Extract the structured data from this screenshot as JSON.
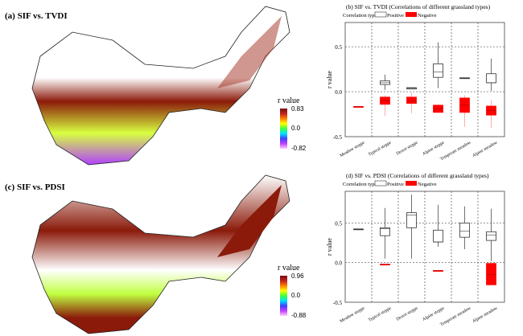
{
  "maps": [
    {
      "title": "(a) SIF vs. TVDI",
      "legend_title": "r value",
      "max": "0.83",
      "mid": "0.0",
      "min": "-0.82"
    },
    {
      "title": "(c) SIF vs. PDSI",
      "legend_title": "r value",
      "max": "0.96",
      "mid": "0.0",
      "min": "-0.88"
    }
  ],
  "chart_data": [
    {
      "type": "box",
      "title": "(b) SIF vs. TVDI (Correlations of different grassland types)",
      "legend_label": "Correlation type",
      "legend": [
        "Positive",
        "Negative"
      ],
      "ylabel": "r value",
      "ylim": [
        -0.5,
        0.77
      ],
      "yticks": [
        "-0.5",
        "0.0",
        "0.5"
      ],
      "ytick_values": [
        -0.5,
        0,
        0.5
      ],
      "categories": [
        "Meadow steppe",
        "Typical steppe",
        "Desert steppe",
        "Alpine steppe",
        "Temperate meadow",
        "Alpine meadow"
      ],
      "positive": [
        null,
        {
          "min": 0.02,
          "q1": 0.08,
          "med": 0.1,
          "q3": 0.12,
          "max": 0.19
        },
        {
          "min": 0.03,
          "q1": 0.03,
          "med": 0.04,
          "q3": 0.045,
          "max": 0.045
        },
        {
          "min": 0.04,
          "q1": 0.16,
          "med": 0.22,
          "q3": 0.31,
          "max": 0.55
        },
        {
          "min": 0.15,
          "q1": 0.15,
          "med": 0.15,
          "q3": 0.155,
          "max": 0.155
        },
        {
          "min": 0.01,
          "q1": 0.1,
          "med": 0.1,
          "q3": 0.2,
          "max": 0.37
        }
      ],
      "negative": [
        {
          "min": -0.165,
          "q1": -0.165,
          "med": -0.165,
          "q3": -0.165,
          "max": -0.165
        },
        {
          "min": -0.27,
          "q1": -0.14,
          "med": -0.1,
          "q3": -0.06,
          "max": -0.04
        },
        {
          "min": -0.24,
          "q1": -0.13,
          "med": -0.1,
          "q3": -0.06,
          "max": -0.01
        },
        {
          "min": -0.23,
          "q1": -0.23,
          "med": -0.19,
          "q3": -0.15,
          "max": -0.14
        },
        {
          "min": -0.39,
          "q1": -0.23,
          "med": -0.15,
          "q3": -0.07,
          "max": -0.04
        },
        {
          "min": -0.4,
          "q1": -0.26,
          "med": -0.21,
          "q3": -0.16,
          "max": -0.09
        }
      ]
    },
    {
      "type": "box",
      "title": "(d) SIF vs. PDSI (Correlations of different grassland types)",
      "legend_label": "Correlation type",
      "legend": [
        "Positive",
        "Negative"
      ],
      "ylabel": "r value",
      "ylim": [
        -0.5,
        0.9
      ],
      "yticks": [
        "-0.5",
        "0.0",
        "0.5"
      ],
      "ytick_values": [
        -0.5,
        0,
        0.5
      ],
      "categories": [
        "Meadow steppe",
        "Typical steppe",
        "Desert steppe",
        "Alpine steppe",
        "Temperate meadow",
        "Alpine meadow"
      ],
      "positive": [
        {
          "min": 0.42,
          "q1": 0.42,
          "med": 0.42,
          "q3": 0.425,
          "max": 0.425
        },
        {
          "min": 0.05,
          "q1": 0.34,
          "med": 0.43,
          "q3": 0.44,
          "max": 0.69
        },
        {
          "min": 0.05,
          "q1": 0.44,
          "med": 0.6,
          "q3": 0.63,
          "max": 0.86
        },
        {
          "min": 0.2,
          "q1": 0.26,
          "med": 0.26,
          "q3": 0.41,
          "max": 0.73
        },
        {
          "min": 0.17,
          "q1": 0.32,
          "med": 0.4,
          "q3": 0.5,
          "max": 0.71
        },
        {
          "min": 0.02,
          "q1": 0.28,
          "med": 0.35,
          "q3": 0.39,
          "max": 0.68
        }
      ],
      "negative": [
        null,
        {
          "min": -0.02,
          "q1": -0.02,
          "med": -0.02,
          "q3": -0.02,
          "max": -0.02
        },
        null,
        {
          "min": -0.1,
          "q1": -0.1,
          "med": -0.1,
          "q3": -0.1,
          "max": -0.1
        },
        null,
        {
          "min": -0.28,
          "q1": -0.28,
          "med": -0.15,
          "q3": -0.01,
          "max": -0.01
        }
      ]
    }
  ],
  "colors": {
    "negative": "#ff0000",
    "positive": "#ffffff"
  }
}
